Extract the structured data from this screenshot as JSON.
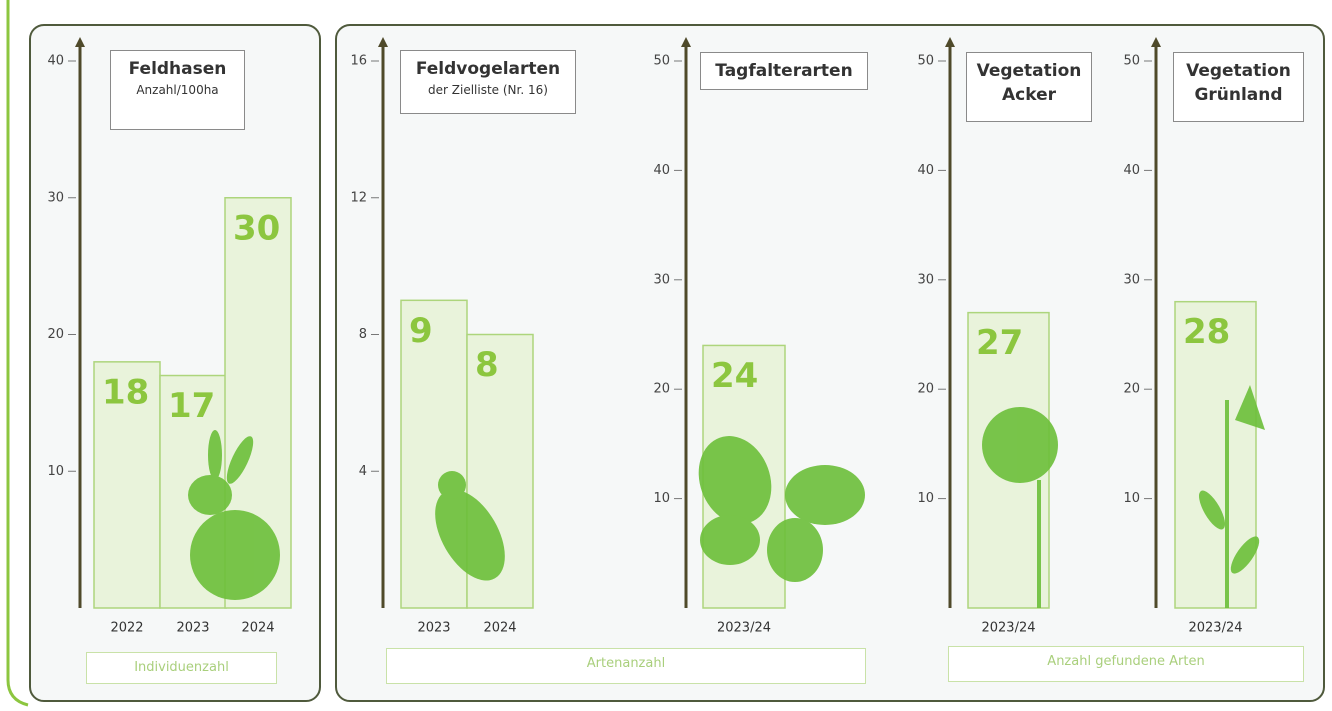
{
  "chart_data": [
    {
      "type": "bar",
      "title": "Feldhasen",
      "subtitle": "Anzahl/100ha",
      "categories": [
        "2022",
        "2023",
        "2024"
      ],
      "values": [
        18,
        17,
        30
      ],
      "ylim": [
        0,
        40
      ],
      "yticks": [
        10,
        20,
        30,
        40
      ],
      "footer": "Individuenzahl",
      "color": "#e9f3db"
    },
    {
      "type": "bar",
      "title": "Feldvogelarten",
      "subtitle": "der Zielliste (Nr. 16)",
      "categories": [
        "2023",
        "2024"
      ],
      "values": [
        9,
        8
      ],
      "ylim": [
        0,
        16
      ],
      "yticks": [
        4,
        8,
        12,
        16
      ],
      "footer": "Artenanzahl",
      "color": "#e9f3db"
    },
    {
      "type": "bar",
      "title": "Tagfalterarten",
      "categories": [
        "2023/24"
      ],
      "values": [
        24
      ],
      "ylim": [
        0,
        50
      ],
      "yticks": [
        10,
        20,
        30,
        40,
        50
      ],
      "color": "#e9f3db"
    },
    {
      "type": "bar",
      "title": "Vegetation Acker",
      "categories": [
        "2023/24"
      ],
      "values": [
        27
      ],
      "ylim": [
        0,
        50
      ],
      "yticks": [
        10,
        20,
        30,
        40,
        50
      ],
      "footer": "Anzahl gefundene Arten",
      "color": "#e9f3db"
    },
    {
      "type": "bar",
      "title": "Vegetation Grünland",
      "categories": [
        "2023/24"
      ],
      "values": [
        28
      ],
      "ylim": [
        0,
        50
      ],
      "yticks": [
        10,
        20,
        30,
        40,
        50
      ],
      "color": "#e9f3db"
    }
  ]
}
